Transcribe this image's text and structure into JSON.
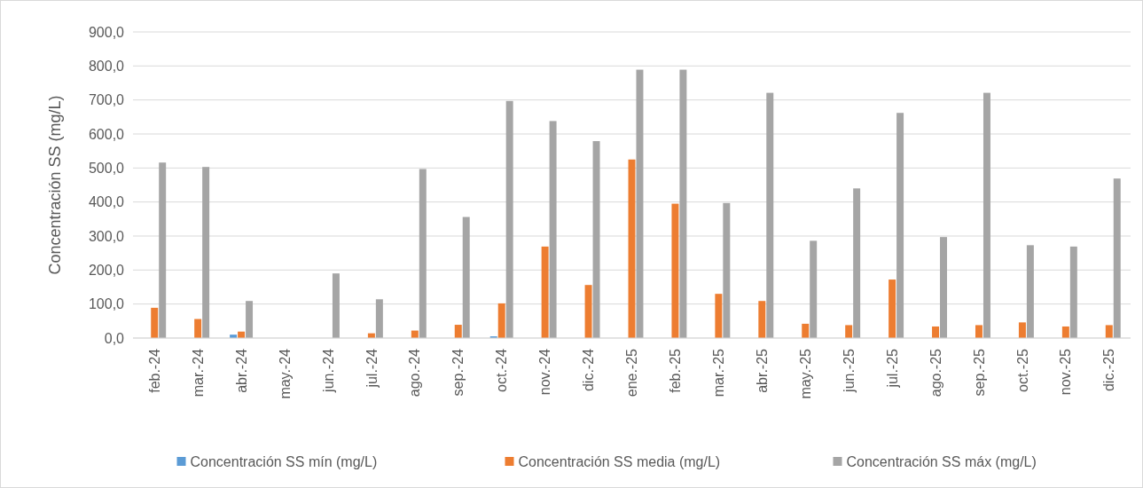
{
  "chart_data": {
    "type": "bar",
    "ylabel": "Concentración SS (mg/L)",
    "categories": [
      "feb.-24",
      "mar.-24",
      "abr.-24",
      "may.-24",
      "jun.-24",
      "jul.-24",
      "ago.-24",
      "sep.-24",
      "oct.-24",
      "nov.-24",
      "dic.-24",
      "ene.-25",
      "feb.-25",
      "mar.-25",
      "abr.-25",
      "may.-25",
      "jun.-25",
      "jul.-25",
      "ago.-25",
      "sep.-25",
      "oct.-25",
      "nov.-25",
      "dic.-25"
    ],
    "series": [
      {
        "name": "Concentración SS mín (mg/L)",
        "color": "#5b9bd5",
        "values": [
          null,
          null,
          10,
          null,
          null,
          null,
          null,
          null,
          5,
          null,
          null,
          null,
          null,
          null,
          null,
          null,
          null,
          null,
          null,
          null,
          null,
          null,
          null
        ]
      },
      {
        "name": "Concentración SS media (mg/L)",
        "color": "#ed7d31",
        "values": [
          89,
          56,
          19,
          null,
          null,
          14,
          22,
          39,
          102,
          269,
          156,
          525,
          395,
          130,
          109,
          42,
          38,
          172,
          34,
          38,
          46,
          34,
          38
        ]
      },
      {
        "name": "Concentración SS máx (mg/L)",
        "color": "#a5a5a5",
        "values": [
          516,
          503,
          109,
          null,
          190,
          114,
          497,
          356,
          697,
          638,
          579,
          789,
          789,
          397,
          721,
          286,
          440,
          662,
          297,
          721,
          273,
          269,
          469
        ]
      }
    ],
    "ylim": [
      0,
      900
    ],
    "yticks": [
      {
        "value": 0,
        "label": "0,0"
      },
      {
        "value": 100,
        "label": "100,0"
      },
      {
        "value": 200,
        "label": "200,0"
      },
      {
        "value": 300,
        "label": "300,0"
      },
      {
        "value": 400,
        "label": "400,0"
      },
      {
        "value": 500,
        "label": "500,0"
      },
      {
        "value": 600,
        "label": "600,0"
      },
      {
        "value": 700,
        "label": "700,0"
      },
      {
        "value": 800,
        "label": "800,0"
      },
      {
        "value": 900,
        "label": "900,0"
      }
    ],
    "grid": "y",
    "legend": "bottom"
  }
}
